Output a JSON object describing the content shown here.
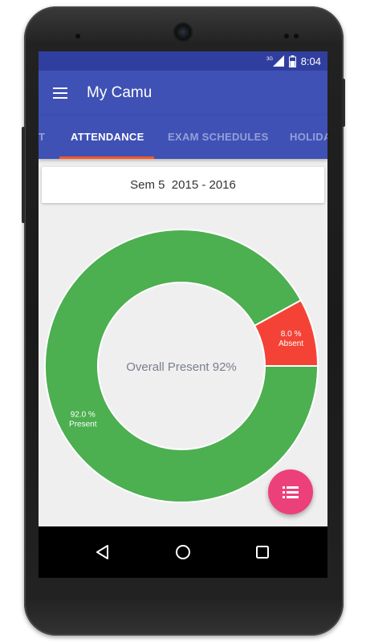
{
  "status_bar": {
    "network": "3G",
    "time": "8:04"
  },
  "toolbar": {
    "title": "My Camu",
    "menu_icon": "hamburger-menu-icon"
  },
  "tabs": [
    {
      "label": "T",
      "active": false
    },
    {
      "label": "ATTENDANCE",
      "active": true
    },
    {
      "label": "EXAM SCHEDULES",
      "active": false
    },
    {
      "label": "HOLIDA",
      "active": false
    }
  ],
  "semester": {
    "label": "Sem 5  2015 - 2016"
  },
  "chart_data": {
    "type": "pie",
    "center_label": "Overall Present 92%",
    "slices": [
      {
        "value_label": "92.0 %",
        "name": "Present",
        "value": 92.0,
        "color": "#4caf50"
      },
      {
        "value_label": "8.0 %",
        "name": "Absent",
        "value": 8.0,
        "color": "#f44336"
      }
    ]
  },
  "fab": {
    "icon": "list-icon",
    "color": "#ec407a"
  },
  "colors": {
    "primary": "#3f51b5",
    "primary_dark": "#303f9f",
    "tab_indicator": "#ff5722"
  },
  "nav_bar": {
    "icons": [
      "back-icon",
      "home-icon",
      "recents-icon"
    ]
  }
}
